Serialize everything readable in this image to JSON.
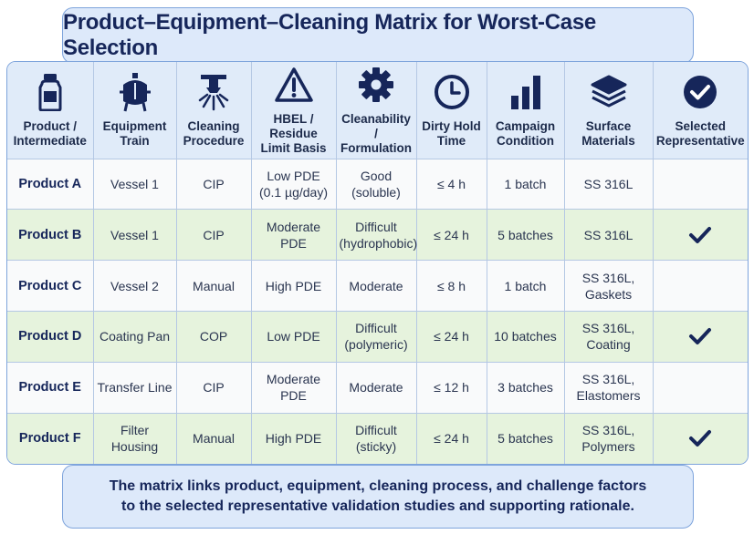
{
  "title": "Product–Equipment–Cleaning Matrix for Worst-Case Selection",
  "colors": {
    "header_bg": "#e0ebf9",
    "row_white": "#f9fafb",
    "row_green": "#e6f3dd",
    "accent": "#16265a",
    "border": "#7ea4dc"
  },
  "headers": [
    {
      "label": "Product / Intermediate",
      "icon": "bottle-icon"
    },
    {
      "label": "Equipment Train",
      "icon": "vessel-icon"
    },
    {
      "label": "Cleaning Procedure",
      "icon": "spray-nozzle-icon"
    },
    {
      "label": "HBEL / Residue Limit Basis",
      "icon": "warning-icon"
    },
    {
      "label": "Cleanability / Formulation",
      "icon": "gear-icon"
    },
    {
      "label": "Dirty Hold Time",
      "icon": "clock-icon"
    },
    {
      "label": "Campaign Condition",
      "icon": "bar-chart-icon"
    },
    {
      "label": "Surface Materials",
      "icon": "layers-icon"
    },
    {
      "label": "Selected Representative",
      "icon": "check-circle-icon"
    }
  ],
  "rows": [
    {
      "product": "Product A",
      "equipment": "Vessel 1",
      "cleaning": "CIP",
      "hbel": "Low PDE (0.1 µg/day)",
      "cleanability": "Good (soluble)",
      "hold": "≤ 4 h",
      "campaign": "1 batch",
      "surface": "SS 316L",
      "selected": false
    },
    {
      "product": "Product B",
      "equipment": "Vessel 1",
      "cleaning": "CIP",
      "hbel": "Moderate PDE",
      "cleanability": "Difficult (hydrophobic)",
      "hold": "≤ 24 h",
      "campaign": "5 batches",
      "surface": "SS 316L",
      "selected": true
    },
    {
      "product": "Product C",
      "equipment": "Vessel 2",
      "cleaning": "Manual",
      "hbel": "High PDE",
      "cleanability": "Moderate",
      "hold": "≤ 8 h",
      "campaign": "1 batch",
      "surface": "SS 316L, Gaskets",
      "selected": false
    },
    {
      "product": "Product D",
      "equipment": "Coating Pan",
      "cleaning": "COP",
      "hbel": "Low PDE",
      "cleanability": "Difficult (polymeric)",
      "hold": "≤ 24 h",
      "campaign": "10 batches",
      "surface": "SS 316L, Coating",
      "selected": true
    },
    {
      "product": "Product E",
      "equipment": "Transfer Line",
      "cleaning": "CIP",
      "hbel": "Moderate PDE",
      "cleanability": "Moderate",
      "hold": "≤ 12 h",
      "campaign": "3 batches",
      "surface": "SS 316L, Elastomers",
      "selected": false
    },
    {
      "product": "Product F",
      "equipment": "Filter Housing",
      "cleaning": "Manual",
      "hbel": "High PDE",
      "cleanability": "Difficult (sticky)",
      "hold": "≤ 24 h",
      "campaign": "5 batches",
      "surface": "SS 316L, Polymers",
      "selected": true
    }
  ],
  "footer": {
    "line1": "The matrix links product, equipment, cleaning process, and challenge factors",
    "line2": "to the selected representative validation studies and supporting rationale."
  }
}
